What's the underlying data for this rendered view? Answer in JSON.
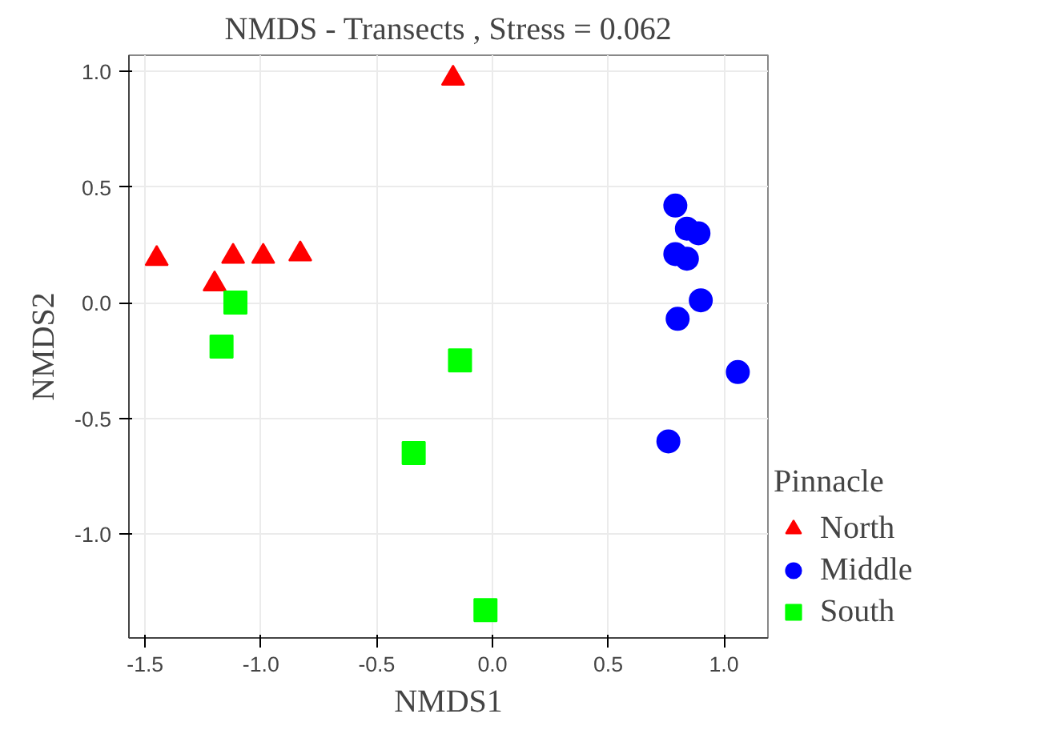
{
  "chart_data": {
    "type": "scatter",
    "title": "NMDS - Transects , Stress = 0.062",
    "xlabel": "NMDS1",
    "ylabel": "NMDS2",
    "legend_title": "Pinnacle",
    "legend": "right",
    "grid": true,
    "xlim": [
      -1.57,
      1.19
    ],
    "ylim": [
      -1.45,
      1.07
    ],
    "xticks": [
      -1.5,
      {
        "value": -1,
        "label": "-1.0"
      },
      -0.5,
      {
        "value": 0,
        "label": "0.0"
      },
      0.5,
      {
        "value": 1,
        "label": "1.0"
      }
    ],
    "yticks": [
      {
        "value": -1,
        "label": "-1.0"
      },
      -0.5,
      {
        "value": 0,
        "label": "0.0"
      },
      0.5,
      {
        "value": 1,
        "label": "1.0"
      }
    ],
    "series": [
      {
        "name": "North",
        "color": "#ff0000",
        "marker": "triangle",
        "x": [
          -1.45,
          -1.2,
          -1.12,
          -0.99,
          -0.83,
          -0.17
        ],
        "values": [
          0.19,
          0.08,
          0.2,
          0.2,
          0.21,
          0.97
        ]
      },
      {
        "name": "Middle",
        "color": "#0000ff",
        "marker": "circle",
        "x": [
          0.79,
          0.84,
          0.89,
          0.79,
          0.84,
          0.9,
          0.8,
          1.06,
          0.76
        ],
        "values": [
          0.42,
          0.32,
          0.3,
          0.21,
          0.19,
          0.01,
          -0.07,
          -0.3,
          -0.6
        ]
      },
      {
        "name": "South",
        "color": "#00ff00",
        "marker": "square",
        "x": [
          -1.11,
          -1.17,
          -0.14,
          -0.34,
          -0.03
        ],
        "values": [
          0.0,
          -0.19,
          -0.25,
          -0.65,
          -1.33
        ]
      }
    ]
  }
}
